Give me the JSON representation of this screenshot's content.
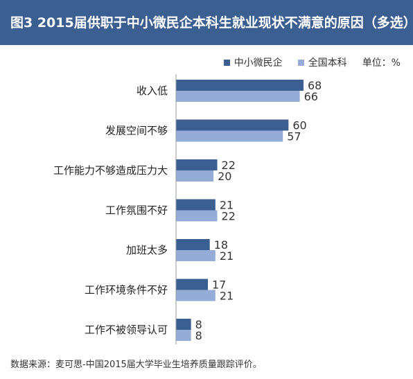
{
  "title": "图3  2015届供职于中小微民企本科生就业现状不满意的原因（多选）",
  "legend": {
    "series1": "中小微民企",
    "series2": "全国本科",
    "unit": "单位：%"
  },
  "source": "数据来源：麦可思-中国2015届大学毕业生培养质量跟踪评价。",
  "colors": {
    "header": "#3c5f91",
    "series1": "#3c5f91",
    "series2": "#94acd6"
  },
  "chart_data": {
    "type": "bar",
    "orientation": "horizontal",
    "categories": [
      "收入低",
      "发展空间不够",
      "工作能力不够造成压力大",
      "工作氛围不好",
      "加班太多",
      "工作环境条件不好",
      "工作不被领导认可"
    ],
    "series": [
      {
        "name": "中小微民企",
        "values": [
          68,
          60,
          22,
          21,
          18,
          17,
          8
        ]
      },
      {
        "name": "全国本科",
        "values": [
          66,
          57,
          20,
          22,
          21,
          21,
          8
        ]
      }
    ],
    "unit": "%",
    "legend_position": "top-right"
  }
}
